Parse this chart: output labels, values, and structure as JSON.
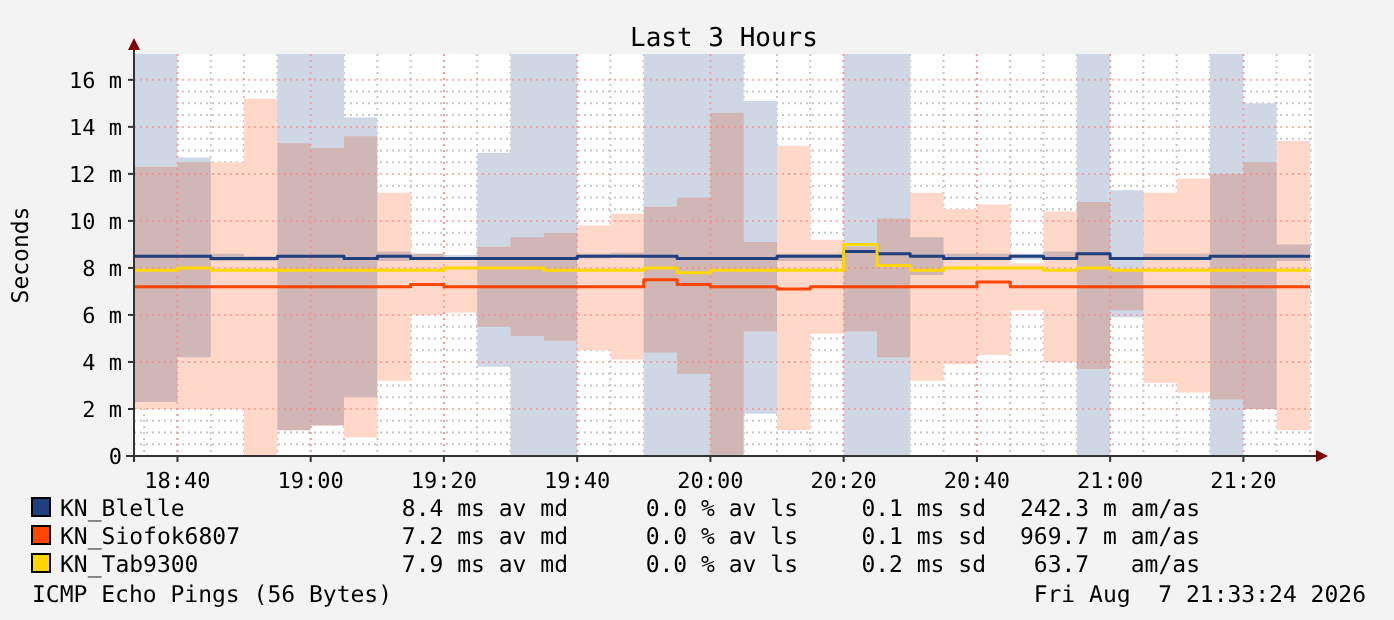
{
  "chart_data": {
    "type": "step",
    "title": "Last 3 Hours",
    "ylabel": "Seconds",
    "x": [
      18.558,
      18.6667,
      18.75,
      18.8333,
      18.9167,
      19.0,
      19.0833,
      19.1667,
      19.25,
      19.3333,
      19.4167,
      19.5,
      19.5833,
      19.6667,
      19.75,
      19.8333,
      19.9167,
      20.0,
      20.0833,
      20.1667,
      20.25,
      20.3333,
      20.4167,
      20.5,
      20.5833,
      20.6667,
      20.75,
      20.8333,
      20.9167,
      21.0,
      21.0833,
      21.1667,
      21.25,
      21.3333,
      21.4167,
      21.5
    ],
    "xlim": [
      18.558,
      21.51
    ],
    "xticks": [
      {
        "value": 18.6667,
        "label": "18:40"
      },
      {
        "value": 19.0,
        "label": "19:00"
      },
      {
        "value": 19.3333,
        "label": "19:20"
      },
      {
        "value": 19.6667,
        "label": "19:40"
      },
      {
        "value": 20.0,
        "label": "20:00"
      },
      {
        "value": 20.3333,
        "label": "20:20"
      },
      {
        "value": 20.6667,
        "label": "20:40"
      },
      {
        "value": 21.0,
        "label": "21:00"
      },
      {
        "value": 21.3333,
        "label": "21:20"
      }
    ],
    "ylim": [
      0,
      17.1
    ],
    "yticks": [
      {
        "value": 0,
        "label": "0"
      },
      {
        "value": 2,
        "label": "2 m"
      },
      {
        "value": 4,
        "label": "4 m"
      },
      {
        "value": 6,
        "label": "6 m"
      },
      {
        "value": 8,
        "label": "8 m"
      },
      {
        "value": 10,
        "label": "10 m"
      },
      {
        "value": 12,
        "label": "12 m"
      },
      {
        "value": 14,
        "label": "14 m"
      },
      {
        "value": 16,
        "label": "16 m"
      }
    ],
    "grid": true,
    "legend": "bottom",
    "series": [
      {
        "name": "KN_Blelle",
        "color": "#1f3f7f",
        "values": [
          8.5,
          8.5,
          8.4,
          8.4,
          8.5,
          8.5,
          8.4,
          8.5,
          8.4,
          8.4,
          8.4,
          8.4,
          8.4,
          8.5,
          8.5,
          8.5,
          8.4,
          8.4,
          8.4,
          8.5,
          8.5,
          8.7,
          8.6,
          8.5,
          8.4,
          8.4,
          8.5,
          8.4,
          8.6,
          8.4,
          8.4,
          8.4,
          8.5,
          8.5,
          8.5,
          8.5
        ],
        "lower": [
          2.3,
          4.2,
          8.3,
          8.3,
          1.1,
          1.3,
          2.5,
          8.3,
          8.4,
          8.35,
          3.8,
          0,
          0,
          8.4,
          8.45,
          0,
          0,
          0,
          1.8,
          8.3,
          8.3,
          0,
          0,
          7.7,
          8.4,
          8.4,
          8.35,
          8.35,
          0,
          5.9,
          8.4,
          8.4,
          0,
          2.0,
          8.3,
          8.3
        ],
        "upper": [
          17.1,
          12.7,
          8.6,
          8.5,
          17.1,
          17.1,
          14.4,
          8.7,
          8.6,
          8.55,
          12.9,
          17.1,
          17.1,
          8.6,
          8.65,
          17.1,
          17.1,
          17.1,
          15.1,
          8.6,
          8.6,
          17.1,
          17.1,
          9.3,
          8.6,
          8.6,
          8.6,
          8.7,
          17.1,
          11.3,
          8.6,
          8.6,
          17.1,
          15.0,
          9.0,
          9.0
        ]
      },
      {
        "name": "KN_Siofok6807",
        "color": "#ff4500",
        "values": [
          7.2,
          7.2,
          7.2,
          7.2,
          7.2,
          7.2,
          7.2,
          7.2,
          7.3,
          7.2,
          7.2,
          7.2,
          7.2,
          7.2,
          7.2,
          7.5,
          7.3,
          7.2,
          7.2,
          7.1,
          7.2,
          7.2,
          7.2,
          7.2,
          7.2,
          7.4,
          7.2,
          7.2,
          7.2,
          7.2,
          7.2,
          7.2,
          7.2,
          7.2,
          7.2,
          7.2
        ],
        "lower": [
          2.0,
          2.0,
          2.0,
          0,
          1.1,
          1.3,
          0.8,
          3.2,
          6.0,
          6.1,
          5.5,
          5.1,
          4.9,
          4.5,
          4.1,
          4.4,
          3.5,
          0,
          5.3,
          1.1,
          5.2,
          5.3,
          4.2,
          3.2,
          3.9,
          4.3,
          6.2,
          4.0,
          3.7,
          6.2,
          3.1,
          2.7,
          2.4,
          2.0,
          1.1,
          1.1
        ],
        "upper": [
          12.3,
          12.5,
          12.5,
          15.2,
          13.3,
          13.1,
          13.6,
          11.2,
          8.6,
          8.35,
          8.9,
          9.3,
          9.5,
          9.8,
          10.3,
          10.6,
          11.0,
          14.6,
          9.1,
          13.2,
          9.2,
          8.9,
          10.1,
          11.2,
          10.5,
          10.7,
          8.2,
          10.4,
          10.8,
          7.9,
          11.2,
          11.8,
          12.0,
          12.5,
          13.4,
          13.4
        ]
      },
      {
        "name": "KN_Tab9300",
        "color": "#ffd700",
        "values": [
          7.9,
          8.0,
          7.9,
          7.9,
          7.9,
          7.9,
          7.9,
          7.9,
          7.9,
          8.0,
          8.0,
          8.0,
          7.9,
          7.9,
          7.9,
          8.0,
          7.8,
          7.9,
          7.9,
          7.9,
          7.9,
          9.0,
          8.1,
          7.9,
          8.0,
          8.0,
          8.0,
          7.9,
          8.0,
          7.9,
          7.9,
          7.9,
          7.9,
          7.9,
          7.9,
          7.9
        ]
      }
    ],
    "annotations": [
      "8.4 ms av md",
      "0.0 % av ls",
      "0.1 ms sd",
      "242.3 m am/as",
      "7.2 ms av md",
      "0.0 % av ls",
      "0.1 ms sd",
      "969.7 m am/as",
      "7.9 ms av md",
      "0.0 % av ls",
      "0.2 ms sd",
      "63.7   am/as",
      "ICMP Echo Pings (56 Bytes)",
      "Fri Aug  7 21:33:24 2026"
    ]
  }
}
